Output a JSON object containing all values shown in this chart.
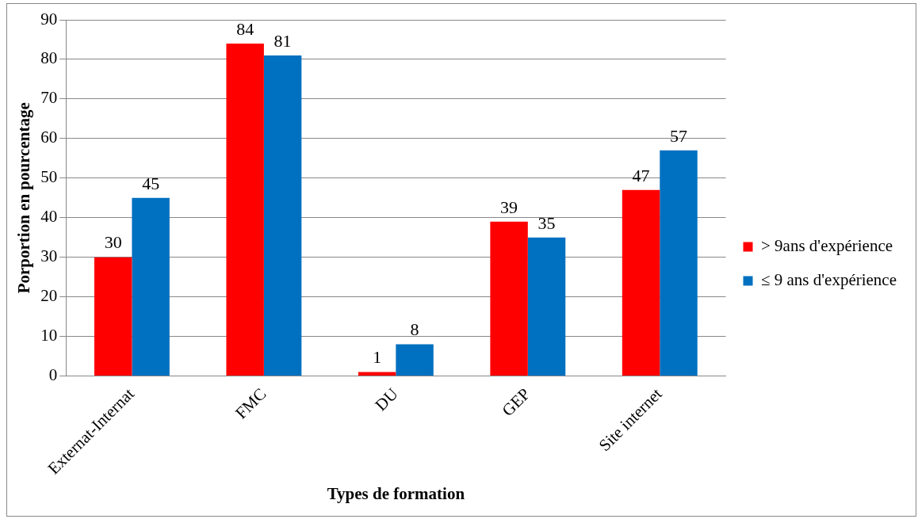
{
  "chart_data": {
    "type": "bar",
    "xlabel": "Types de formation",
    "ylabel": "Porportion en pourcentage",
    "categories": [
      "Externat-Internat",
      "FMC",
      "DU",
      "GEP",
      "Site internet"
    ],
    "series": [
      {
        "name": "> 9ans d'expérience",
        "color": "#ff0000",
        "values": [
          30,
          84,
          1,
          39,
          47
        ]
      },
      {
        "name": "≤ 9 ans d'expérience",
        "color": "#0070c0",
        "values": [
          45,
          81,
          8,
          35,
          57
        ]
      }
    ],
    "ylim": [
      0,
      90
    ],
    "yticks": [
      0,
      10,
      20,
      30,
      40,
      50,
      60,
      70,
      80,
      90
    ],
    "grid": "y",
    "legend": "right",
    "data_labels": true
  }
}
